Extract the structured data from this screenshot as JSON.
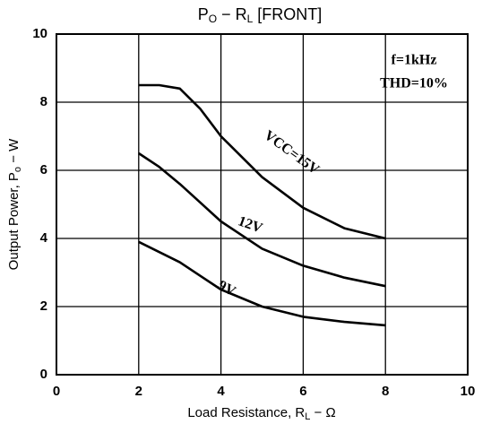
{
  "chart_data": {
    "type": "line",
    "title_parts": [
      "P",
      "O",
      " − R",
      "L",
      " [FRONT]"
    ],
    "y_label_parts": [
      "Output Power, P",
      "o",
      " − W"
    ],
    "x_label_parts": [
      "Load Resistance, R",
      "L",
      " − Ω"
    ],
    "annotations": [
      "f=1kHz",
      "THD=10%"
    ],
    "x": [
      2,
      2.5,
      3,
      3.5,
      4,
      5,
      6,
      7,
      8
    ],
    "series": [
      {
        "name": "VCC=15V",
        "color": "#000000",
        "values": [
          8.5,
          8.5,
          8.4,
          7.8,
          7.0,
          5.8,
          4.9,
          4.3,
          4.0
        ]
      },
      {
        "name": "12V",
        "color": "#000000",
        "values": [
          6.5,
          6.1,
          5.6,
          5.05,
          4.5,
          3.7,
          3.2,
          2.85,
          2.6
        ]
      },
      {
        "name": "9V",
        "color": "#000000",
        "values": [
          3.9,
          3.6,
          3.3,
          2.9,
          2.5,
          2.0,
          1.7,
          1.55,
          1.45
        ]
      }
    ],
    "xlim": [
      0,
      10
    ],
    "xticks": [
      0,
      2,
      4,
      6,
      8,
      10
    ],
    "ylim": [
      0,
      10
    ],
    "yticks": [
      0,
      2,
      4,
      6,
      8,
      10
    ],
    "grid": true
  }
}
